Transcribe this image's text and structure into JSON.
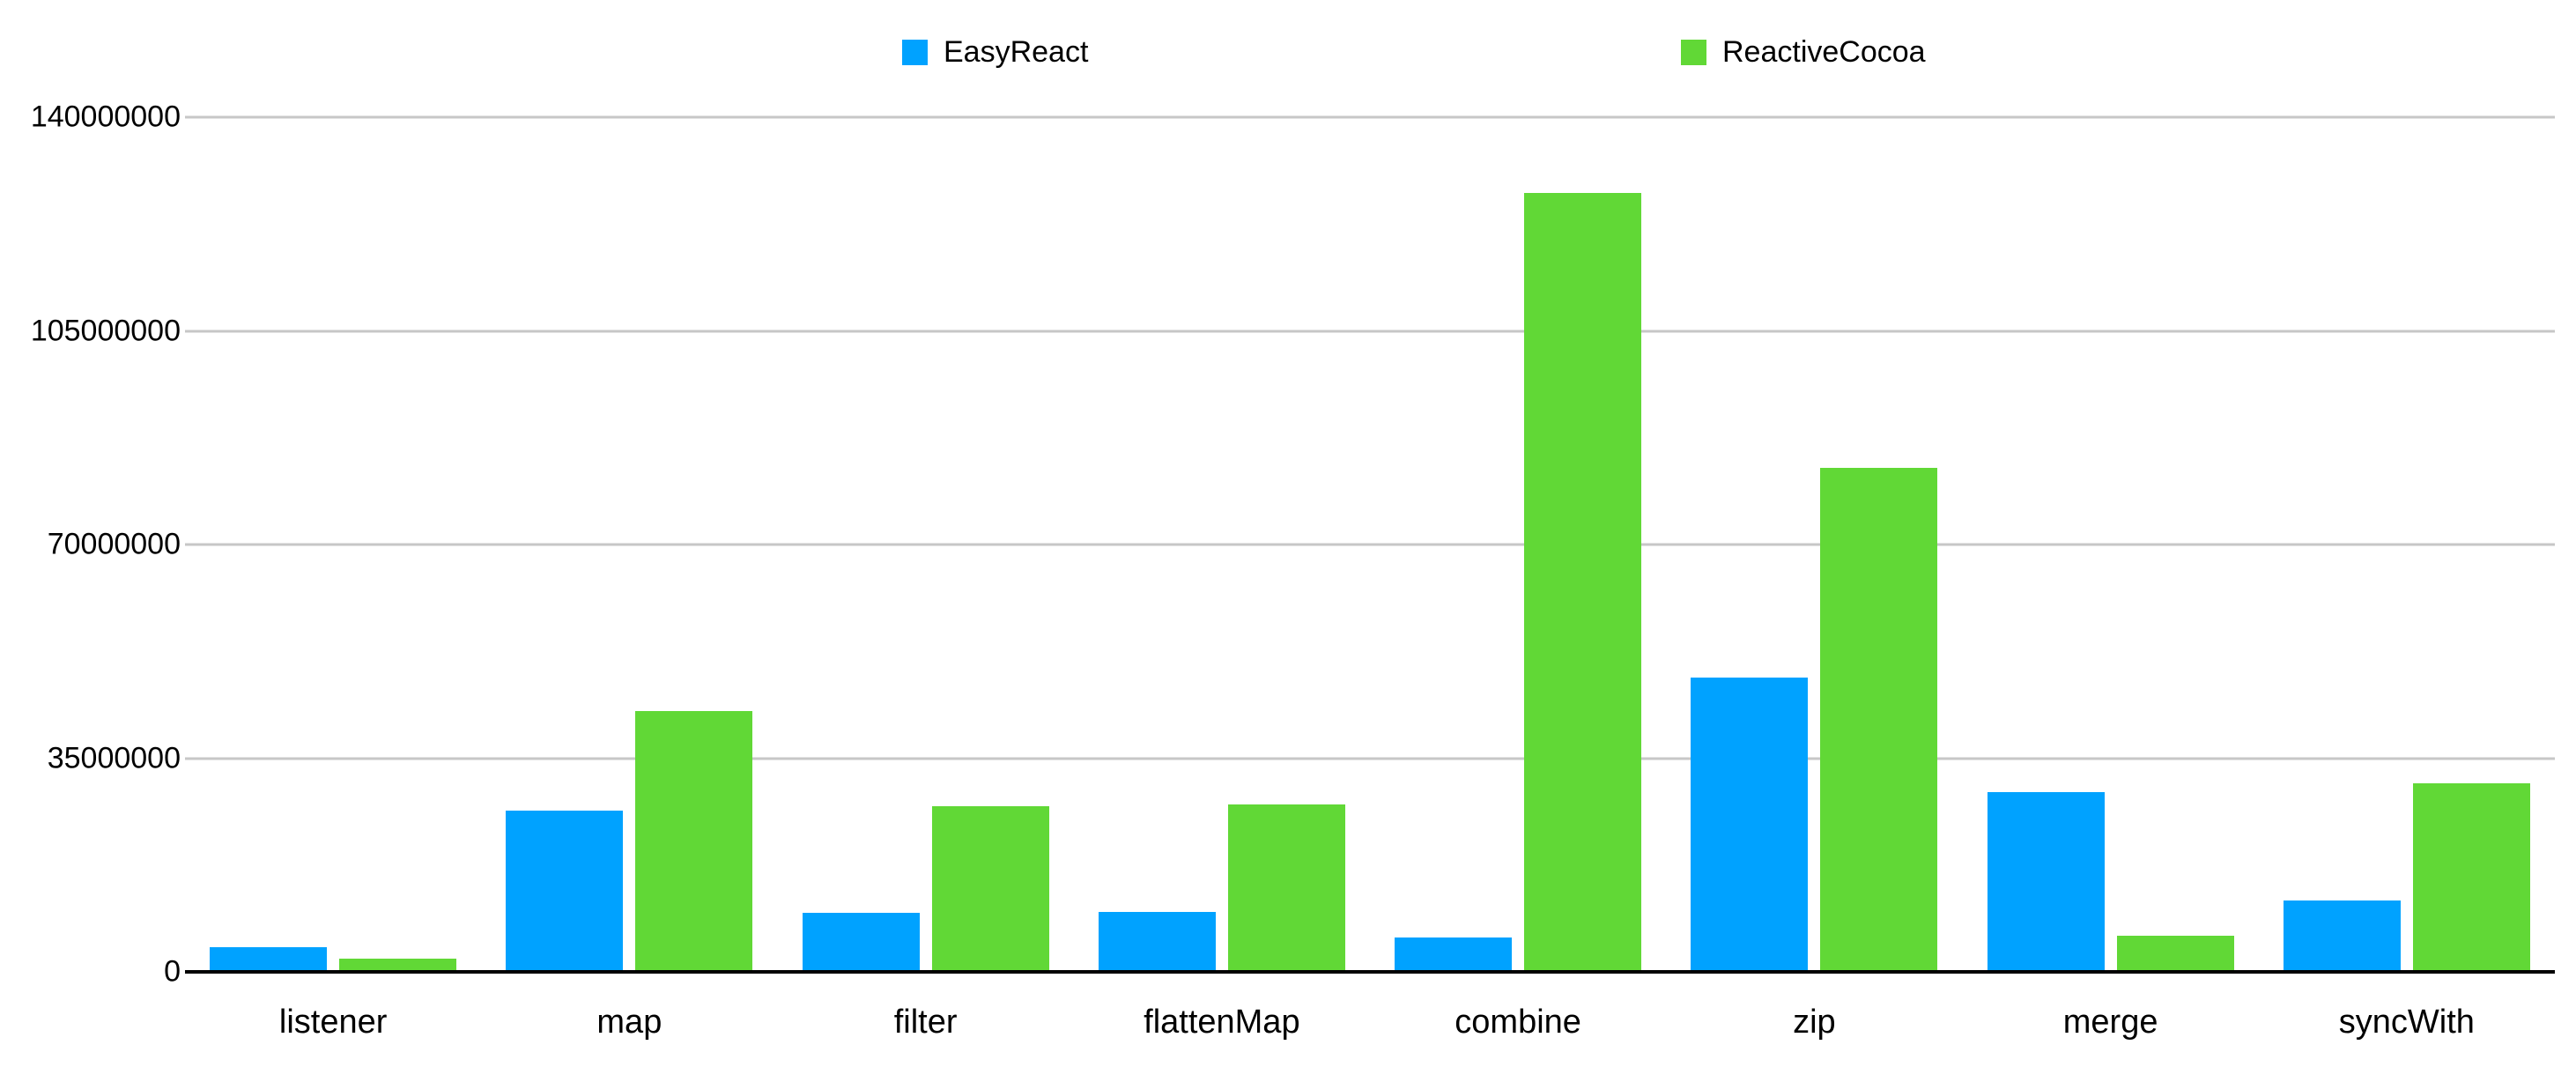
{
  "chart_data": {
    "type": "bar",
    "title": "",
    "xlabel": "",
    "ylabel": "",
    "categories": [
      "listener",
      "map",
      "filter",
      "flattenMap",
      "combine",
      "zip",
      "merge",
      "syncWith"
    ],
    "series": [
      {
        "name": "EasyReact",
        "color": "#00A2FF",
        "values": [
          4000000,
          26400000,
          9700000,
          9800000,
          5600000,
          48200000,
          29400000,
          11700000
        ]
      },
      {
        "name": "ReactiveCocoa",
        "color": "#61D836",
        "values": [
          2100000,
          42700000,
          27100000,
          27400000,
          127600000,
          82600000,
          5900000,
          30900000
        ]
      }
    ],
    "ylim": [
      0,
      140000000
    ],
    "yticks": [
      0,
      35000000,
      70000000,
      105000000,
      140000000
    ],
    "ytick_labels": [
      "0",
      "35000000",
      "70000000",
      "105000000",
      "140000000"
    ],
    "grid": "horizontal",
    "legend_position": "top",
    "colors": {
      "gridline": "#c7c7c7",
      "axis": "#000000",
      "text": "#000000",
      "background": "#ffffff"
    }
  }
}
